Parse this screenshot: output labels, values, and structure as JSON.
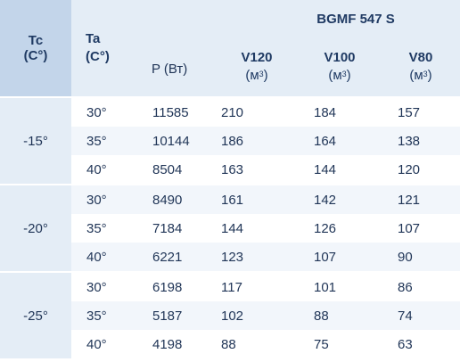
{
  "header": {
    "tc_label": "Tc",
    "tc_unit": "(C°)",
    "ta_label": "Ta",
    "ta_unit": "(C°)",
    "p_label": "P (Вт)",
    "model": "BGMF 547 S",
    "v120_label": "V120",
    "v100_label": "V100",
    "v80_label": "V80",
    "volume_unit_open": "(м",
    "volume_unit_sup": "3",
    "volume_unit_close": ")"
  },
  "groups": [
    {
      "tc": "-15°",
      "rows": [
        {
          "ta": "30°",
          "p": "11585",
          "v120": "210",
          "v100": "184",
          "v80": "157"
        },
        {
          "ta": "35°",
          "p": "10144",
          "v120": "186",
          "v100": "164",
          "v80": "138"
        },
        {
          "ta": "40°",
          "p": "8504",
          "v120": "163",
          "v100": "144",
          "v80": "120"
        }
      ]
    },
    {
      "tc": "-20°",
      "rows": [
        {
          "ta": "30°",
          "p": "8490",
          "v120": "161",
          "v100": "142",
          "v80": "121"
        },
        {
          "ta": "35°",
          "p": "7184",
          "v120": "144",
          "v100": "126",
          "v80": "107"
        },
        {
          "ta": "40°",
          "p": "6221",
          "v120": "123",
          "v100": "107",
          "v80": "90"
        }
      ]
    },
    {
      "tc": "-25°",
      "rows": [
        {
          "ta": "30°",
          "p": "6198",
          "v120": "117",
          "v100": "101",
          "v80": "86"
        },
        {
          "ta": "35°",
          "p": "5187",
          "v120": "102",
          "v100": "88",
          "v80": "74"
        },
        {
          "ta": "40°",
          "p": "4198",
          "v120": "88",
          "v100": "75",
          "v80": "63"
        }
      ]
    }
  ]
}
